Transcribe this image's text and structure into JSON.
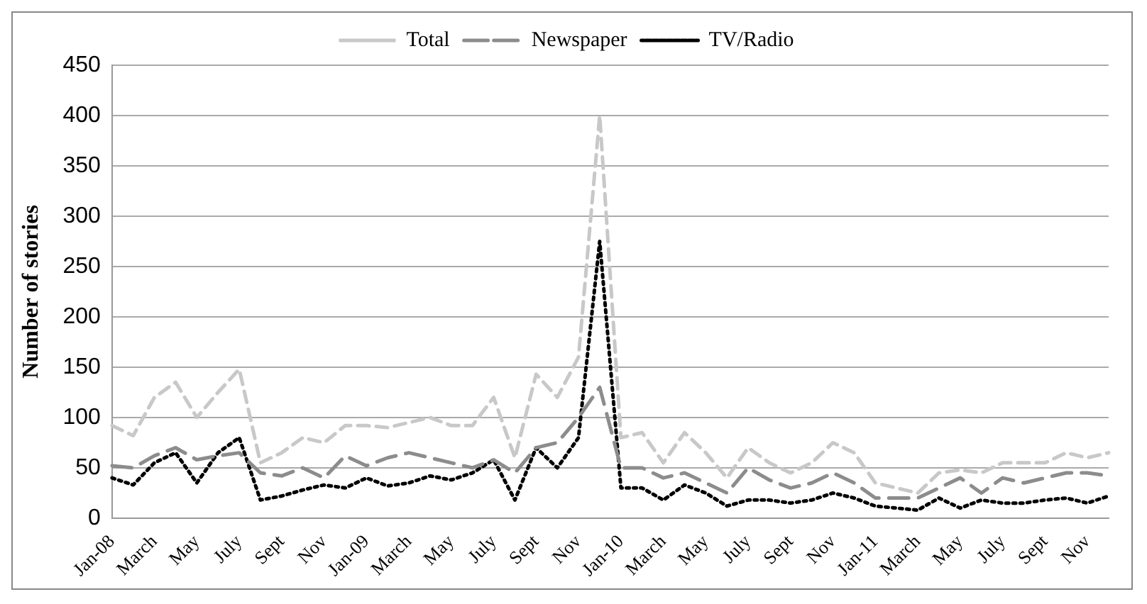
{
  "chart_data": {
    "type": "line",
    "ylabel": "Number of stories",
    "categories": [
      "Jan-08",
      null,
      "March",
      null,
      "May",
      null,
      "July",
      null,
      "Sept",
      null,
      "Nov",
      null,
      "Jan-09",
      null,
      "March",
      null,
      "May",
      null,
      "July",
      null,
      "Sept",
      null,
      "Nov",
      null,
      "Jan-10",
      null,
      "March",
      null,
      "May",
      null,
      "July",
      null,
      "Sept",
      null,
      "Nov",
      null,
      "Jan-11",
      null,
      "March",
      null,
      "May",
      null,
      "July",
      null,
      "Sept",
      null,
      "Nov",
      null
    ],
    "series": [
      {
        "name": "Total",
        "color": "#c8c8c8",
        "line_style": "dashed",
        "values": [
          92,
          82,
          120,
          135,
          100,
          125,
          148,
          55,
          65,
          80,
          75,
          92,
          92,
          90,
          95,
          100,
          92,
          92,
          120,
          60,
          143,
          120,
          160,
          400,
          80,
          85,
          55,
          85,
          65,
          40,
          70,
          55,
          45,
          55,
          75,
          65,
          35,
          30,
          25,
          45,
          48,
          45,
          55,
          55,
          55,
          65,
          60,
          65
        ]
      },
      {
        "name": "Newspaper",
        "color": "#8c8c8c",
        "line_style": "longdash",
        "values": [
          52,
          50,
          62,
          70,
          58,
          62,
          65,
          45,
          42,
          50,
          40,
          62,
          52,
          60,
          65,
          60,
          55,
          50,
          58,
          45,
          70,
          75,
          100,
          130,
          50,
          50,
          40,
          45,
          35,
          25,
          50,
          38,
          30,
          35,
          45,
          35,
          20,
          20,
          20,
          30,
          40,
          25,
          40,
          35,
          40,
          45,
          45,
          42
        ]
      },
      {
        "name": "TV/Radio",
        "color": "#000000",
        "line_style": "dotted",
        "values": [
          40,
          33,
          55,
          65,
          35,
          65,
          80,
          18,
          22,
          28,
          33,
          30,
          40,
          32,
          35,
          42,
          38,
          45,
          58,
          18,
          70,
          50,
          80,
          275,
          30,
          30,
          18,
          33,
          25,
          12,
          18,
          18,
          15,
          18,
          25,
          20,
          12,
          10,
          8,
          20,
          10,
          18,
          15,
          15,
          18,
          20,
          15,
          22
        ]
      }
    ],
    "ylim": [
      0,
      450
    ],
    "yticks": [
      0,
      50,
      100,
      150,
      200,
      250,
      300,
      350,
      400,
      450
    ],
    "grid": "y",
    "legend": "top",
    "marker": "none"
  }
}
